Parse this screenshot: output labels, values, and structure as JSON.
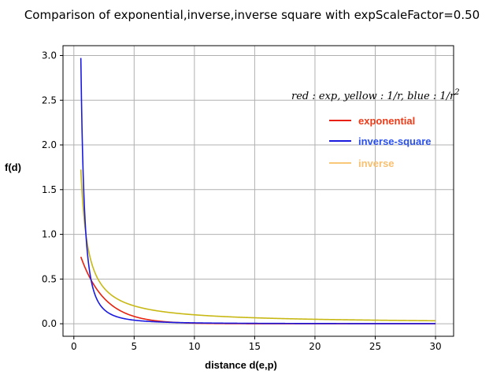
{
  "chart_data": {
    "type": "line",
    "title": "Comparison of exponential,inverse,inverse square with expScaleFactor=0.50",
    "xlabel": "distance d(e,p)",
    "ylabel": "f(d)",
    "xlim": [
      -0.9,
      31.5
    ],
    "ylim": [
      -0.14,
      3.11
    ],
    "grid": true,
    "x_ticks": [
      0,
      5,
      10,
      15,
      20,
      25,
      30
    ],
    "y_ticks": [
      0.0,
      0.5,
      1.0,
      1.5,
      2.0,
      2.5,
      3.0
    ],
    "x_tick_labels": [
      "0",
      "5",
      "10",
      "15",
      "20",
      "25",
      "30"
    ],
    "y_tick_labels": [
      "0.0",
      "0.5",
      "1.0",
      "1.5",
      "2.0",
      "2.5",
      "3.0"
    ],
    "x_range": [
      0.58,
      30
    ],
    "annotation": {
      "text": "red : exp, yellow : 1/r, blue : 1/r",
      "superscript": "2"
    },
    "legend_position": "upper right",
    "series": [
      {
        "name": "exponential",
        "function": "exp(-0.5*d)",
        "color": "#e8200e",
        "x": [
          0.58,
          1,
          1.5,
          2,
          3,
          4,
          5,
          6,
          8,
          10,
          15,
          20,
          25,
          30
        ],
        "values": [
          0.75,
          0.61,
          0.47,
          0.37,
          0.22,
          0.14,
          0.08,
          0.05,
          0.02,
          0.007,
          0.001,
          0,
          0,
          0
        ]
      },
      {
        "name": "inverse-square",
        "function": "1/d^2",
        "color": "#1a1adf",
        "x": [
          0.58,
          1,
          1.5,
          2,
          3,
          4,
          5,
          6,
          8,
          10,
          15,
          20,
          25,
          30
        ],
        "values": [
          2.97,
          1.0,
          0.44,
          0.25,
          0.11,
          0.06,
          0.04,
          0.03,
          0.016,
          0.01,
          0.004,
          0.0025,
          0.0016,
          0.0011
        ]
      },
      {
        "name": "inverse",
        "function": "1/d",
        "color": "#c8b814",
        "x": [
          0.58,
          1,
          1.5,
          2,
          3,
          4,
          5,
          6,
          8,
          10,
          15,
          20,
          25,
          30
        ],
        "values": [
          1.72,
          1.0,
          0.67,
          0.5,
          0.33,
          0.25,
          0.2,
          0.17,
          0.125,
          0.1,
          0.067,
          0.05,
          0.04,
          0.033
        ]
      }
    ],
    "legend": [
      {
        "label": "exponential",
        "line_color": "#e8200e",
        "text_color": "#f03a17"
      },
      {
        "label": "inverse-square",
        "line_color": "#1a1adf",
        "text_color": "#2a50f0"
      },
      {
        "label": " inverse",
        "line_color": "#f8c878",
        "text_color": "#f8c070"
      }
    ]
  }
}
